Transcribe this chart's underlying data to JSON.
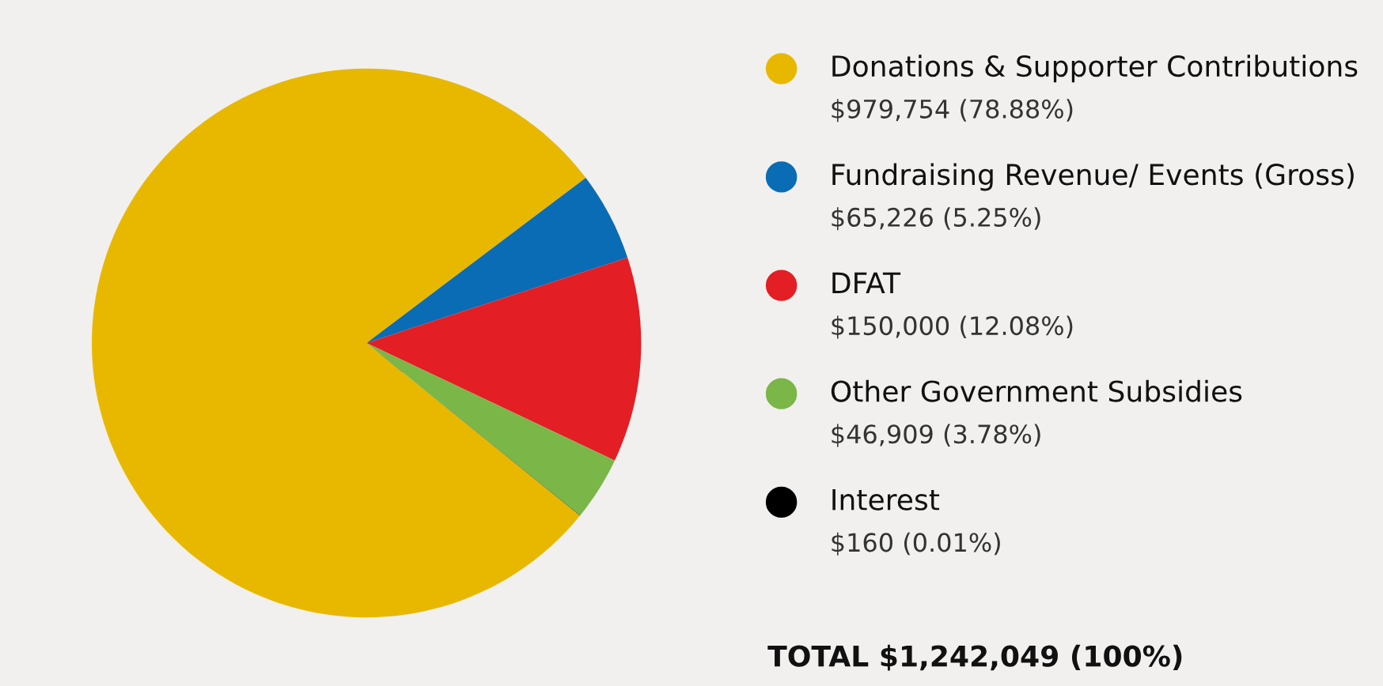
{
  "chart_data": {
    "type": "pie",
    "categories": [
      "Donations & Supporter Contributions",
      "Fundraising Revenue/ Events (Gross)",
      "DFAT",
      "Other Government Subsidies",
      "Interest"
    ],
    "values": [
      979754,
      65226,
      150000,
      46909,
      160
    ],
    "colors": [
      "#e8b800",
      "#0a6cb4",
      "#e31e24",
      "#7ab648",
      "#000000"
    ],
    "value_labels": [
      "$979,754 (78.88%)",
      "$65,226 (5.25%)",
      "$150,000 (12.08%)",
      "$46,909 (3.78%)",
      "$160 (0.01%)"
    ],
    "legend": "right",
    "annotations": [
      "TOTAL $1,242,049 (100%)"
    ]
  }
}
